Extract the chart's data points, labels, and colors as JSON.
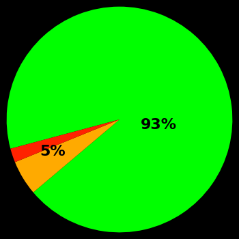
{
  "slices": [
    93,
    5,
    2
  ],
  "colors": [
    "#00ff00",
    "#ffaa00",
    "#ff2200"
  ],
  "labels": [
    "93%",
    "5%",
    ""
  ],
  "background_color": "#000000",
  "startangle": 0,
  "fontsize": 16,
  "fontweight": "bold",
  "figsize": [
    3.5,
    3.5
  ],
  "dpi": 100
}
